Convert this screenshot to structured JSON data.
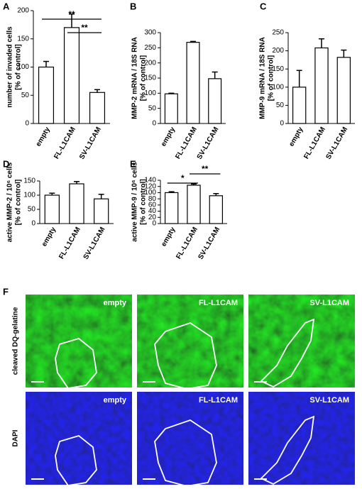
{
  "chart_data": [
    {
      "type": "bar",
      "panel": "A",
      "ylabel": [
        "number of invaded cells",
        "[% of control]"
      ],
      "categories": [
        "empty",
        "FL-L1CAM",
        "SV-L1CAM"
      ],
      "values": [
        100,
        170,
        55
      ],
      "errors": [
        10,
        24,
        5
      ],
      "color": "#ffffff",
      "ylim": [
        0,
        200
      ],
      "yticks": [
        0,
        50,
        100,
        150,
        200
      ],
      "annotations": [
        {
          "label": "**",
          "from": 0,
          "to": 2
        },
        {
          "label": "**",
          "from": 1,
          "to": 2
        }
      ]
    },
    {
      "type": "bar",
      "panel": "B",
      "ylabel": [
        "MMP-2 mRNA / 18S RNA",
        "[% of control]"
      ],
      "categories": [
        "empty",
        "FL-L1CAM",
        "SV-L1CAM"
      ],
      "values": [
        98,
        268,
        148
      ],
      "errors": [
        2,
        3,
        22
      ],
      "color": "#ffffff",
      "ylim": [
        0,
        300
      ],
      "yticks": [
        0,
        50,
        100,
        150,
        200,
        250,
        300
      ]
    },
    {
      "type": "bar",
      "panel": "C",
      "ylabel": [
        "MMP-9 mRNA / 18S RNA",
        "[% of control]"
      ],
      "categories": [
        "empty",
        "FL-L1CAM",
        "SV-L1CAM"
      ],
      "values": [
        100,
        208,
        182
      ],
      "errors": [
        46,
        25,
        20
      ],
      "color": "#ffffff",
      "ylim": [
        0,
        250
      ],
      "yticks": [
        0,
        50,
        100,
        150,
        200,
        250
      ]
    },
    {
      "type": "bar",
      "panel": "D",
      "ylabel": [
        "active MMP-2 / 10⁶ cells",
        "[% of control]"
      ],
      "categories": [
        "empty",
        "FL-L1CAM",
        "SV-L1CAM"
      ],
      "values": [
        100,
        140,
        87
      ],
      "errors": [
        7,
        8,
        16
      ],
      "color": "#ffffff",
      "ylim": [
        0,
        150
      ],
      "yticks": [
        0,
        50,
        100,
        150
      ]
    },
    {
      "type": "bar",
      "panel": "E",
      "ylabel": [
        "active MMP-9 / 10⁶ cells",
        "[% of control]"
      ],
      "categories": [
        "empty",
        "FL-L1CAM",
        "SV-L1CAM"
      ],
      "values": [
        100,
        124,
        90
      ],
      "errors": [
        3,
        4,
        7
      ],
      "color": "#ffffff",
      "ylim": [
        0,
        140
      ],
      "yticks": [
        0,
        20,
        40,
        60,
        80,
        100,
        120,
        140
      ],
      "annotations": [
        {
          "label": "*",
          "from": 0,
          "to": 1
        },
        {
          "label": "**",
          "from": 1,
          "to": 2
        }
      ]
    }
  ],
  "panel_f": {
    "label": "F",
    "rows": [
      "cleaved DQ-gelatine",
      "DAPI"
    ],
    "columns": [
      "empty",
      "FL-L1CAM",
      "SV-L1CAM"
    ]
  }
}
